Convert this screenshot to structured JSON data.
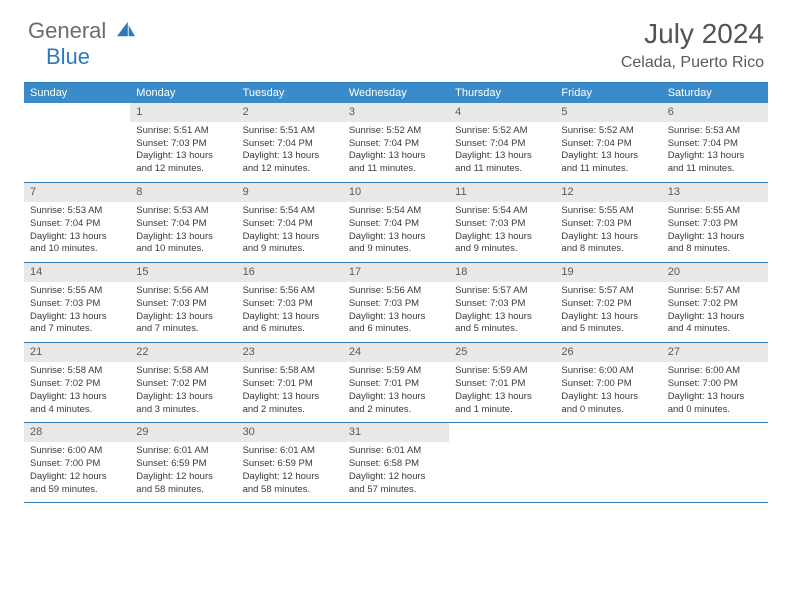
{
  "brand": {
    "gray": "General",
    "blue": "Blue"
  },
  "title": "July 2024",
  "location": "Celada, Puerto Rico",
  "colors": {
    "header_bg": "#3a8bc9",
    "border": "#2b7bbd",
    "daynum_bg": "#e8e8e8",
    "text": "#3a3a3a",
    "title": "#535353"
  },
  "weekdays": [
    "Sunday",
    "Monday",
    "Tuesday",
    "Wednesday",
    "Thursday",
    "Friday",
    "Saturday"
  ],
  "weeks": [
    [
      {
        "n": "",
        "empty": true
      },
      {
        "n": "1",
        "sunrise": "5:51 AM",
        "sunset": "7:03 PM",
        "daylight": "13 hours and 12 minutes."
      },
      {
        "n": "2",
        "sunrise": "5:51 AM",
        "sunset": "7:04 PM",
        "daylight": "13 hours and 12 minutes."
      },
      {
        "n": "3",
        "sunrise": "5:52 AM",
        "sunset": "7:04 PM",
        "daylight": "13 hours and 11 minutes."
      },
      {
        "n": "4",
        "sunrise": "5:52 AM",
        "sunset": "7:04 PM",
        "daylight": "13 hours and 11 minutes."
      },
      {
        "n": "5",
        "sunrise": "5:52 AM",
        "sunset": "7:04 PM",
        "daylight": "13 hours and 11 minutes."
      },
      {
        "n": "6",
        "sunrise": "5:53 AM",
        "sunset": "7:04 PM",
        "daylight": "13 hours and 11 minutes."
      }
    ],
    [
      {
        "n": "7",
        "sunrise": "5:53 AM",
        "sunset": "7:04 PM",
        "daylight": "13 hours and 10 minutes."
      },
      {
        "n": "8",
        "sunrise": "5:53 AM",
        "sunset": "7:04 PM",
        "daylight": "13 hours and 10 minutes."
      },
      {
        "n": "9",
        "sunrise": "5:54 AM",
        "sunset": "7:04 PM",
        "daylight": "13 hours and 9 minutes."
      },
      {
        "n": "10",
        "sunrise": "5:54 AM",
        "sunset": "7:04 PM",
        "daylight": "13 hours and 9 minutes."
      },
      {
        "n": "11",
        "sunrise": "5:54 AM",
        "sunset": "7:03 PM",
        "daylight": "13 hours and 9 minutes."
      },
      {
        "n": "12",
        "sunrise": "5:55 AM",
        "sunset": "7:03 PM",
        "daylight": "13 hours and 8 minutes."
      },
      {
        "n": "13",
        "sunrise": "5:55 AM",
        "sunset": "7:03 PM",
        "daylight": "13 hours and 8 minutes."
      }
    ],
    [
      {
        "n": "14",
        "sunrise": "5:55 AM",
        "sunset": "7:03 PM",
        "daylight": "13 hours and 7 minutes."
      },
      {
        "n": "15",
        "sunrise": "5:56 AM",
        "sunset": "7:03 PM",
        "daylight": "13 hours and 7 minutes."
      },
      {
        "n": "16",
        "sunrise": "5:56 AM",
        "sunset": "7:03 PM",
        "daylight": "13 hours and 6 minutes."
      },
      {
        "n": "17",
        "sunrise": "5:56 AM",
        "sunset": "7:03 PM",
        "daylight": "13 hours and 6 minutes."
      },
      {
        "n": "18",
        "sunrise": "5:57 AM",
        "sunset": "7:03 PM",
        "daylight": "13 hours and 5 minutes."
      },
      {
        "n": "19",
        "sunrise": "5:57 AM",
        "sunset": "7:02 PM",
        "daylight": "13 hours and 5 minutes."
      },
      {
        "n": "20",
        "sunrise": "5:57 AM",
        "sunset": "7:02 PM",
        "daylight": "13 hours and 4 minutes."
      }
    ],
    [
      {
        "n": "21",
        "sunrise": "5:58 AM",
        "sunset": "7:02 PM",
        "daylight": "13 hours and 4 minutes."
      },
      {
        "n": "22",
        "sunrise": "5:58 AM",
        "sunset": "7:02 PM",
        "daylight": "13 hours and 3 minutes."
      },
      {
        "n": "23",
        "sunrise": "5:58 AM",
        "sunset": "7:01 PM",
        "daylight": "13 hours and 2 minutes."
      },
      {
        "n": "24",
        "sunrise": "5:59 AM",
        "sunset": "7:01 PM",
        "daylight": "13 hours and 2 minutes."
      },
      {
        "n": "25",
        "sunrise": "5:59 AM",
        "sunset": "7:01 PM",
        "daylight": "13 hours and 1 minute."
      },
      {
        "n": "26",
        "sunrise": "6:00 AM",
        "sunset": "7:00 PM",
        "daylight": "13 hours and 0 minutes."
      },
      {
        "n": "27",
        "sunrise": "6:00 AM",
        "sunset": "7:00 PM",
        "daylight": "13 hours and 0 minutes."
      }
    ],
    [
      {
        "n": "28",
        "sunrise": "6:00 AM",
        "sunset": "7:00 PM",
        "daylight": "12 hours and 59 minutes."
      },
      {
        "n": "29",
        "sunrise": "6:01 AM",
        "sunset": "6:59 PM",
        "daylight": "12 hours and 58 minutes."
      },
      {
        "n": "30",
        "sunrise": "6:01 AM",
        "sunset": "6:59 PM",
        "daylight": "12 hours and 58 minutes."
      },
      {
        "n": "31",
        "sunrise": "6:01 AM",
        "sunset": "6:58 PM",
        "daylight": "12 hours and 57 minutes."
      },
      {
        "n": "",
        "empty": true
      },
      {
        "n": "",
        "empty": true
      },
      {
        "n": "",
        "empty": true
      }
    ]
  ],
  "labels": {
    "sunrise": "Sunrise:",
    "sunset": "Sunset:",
    "daylight": "Daylight:"
  }
}
